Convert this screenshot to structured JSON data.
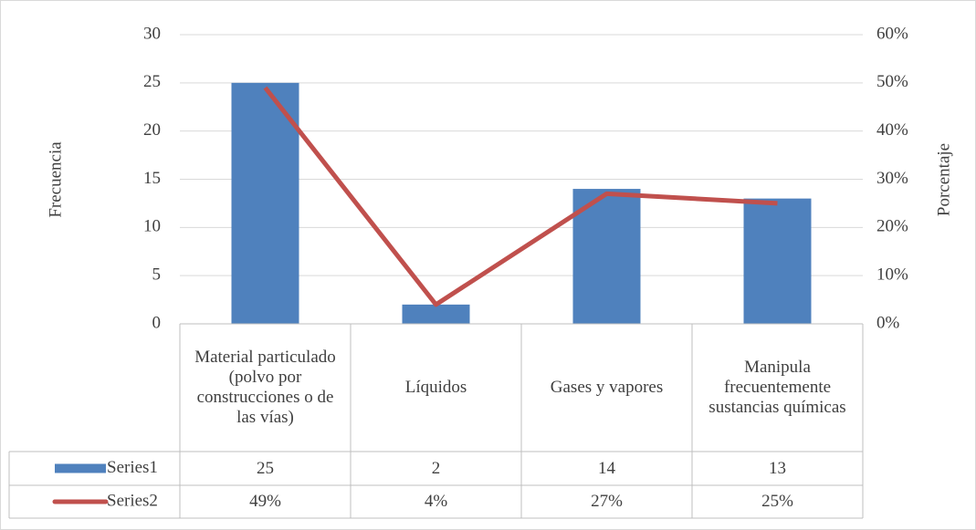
{
  "chart_data": {
    "type": "bar-line",
    "categories": [
      "Material particulado (polvo por construcciones o de las vías)",
      "Líquidos",
      "Gases y vapores",
      "Manipula frecuentemente sustancias químicas"
    ],
    "series": [
      {
        "name": "Series1",
        "type": "bar",
        "color": "#4f81bd",
        "values": [
          25,
          2,
          14,
          13
        ]
      },
      {
        "name": "Series2",
        "type": "line",
        "axis": "y2",
        "color": "#c0504d",
        "values": [
          49,
          4,
          27,
          25
        ],
        "value_labels": [
          "49%",
          "4%",
          "27%",
          "25%"
        ]
      }
    ],
    "y_label": "Frecuencia",
    "y2_label": "Porcentaje",
    "ylim": [
      0,
      30
    ],
    "yticks": [
      0,
      5,
      10,
      15,
      20,
      25,
      30
    ],
    "y2lim": [
      0,
      60
    ],
    "y2ticks": [
      {
        "value": 0,
        "label": "0%"
      },
      {
        "value": 10,
        "label": "10%"
      },
      {
        "value": 20,
        "label": "20%"
      },
      {
        "value": 30,
        "label": "30%"
      },
      {
        "value": 40,
        "label": "40%"
      },
      {
        "value": 50,
        "label": "50%"
      },
      {
        "value": 60,
        "label": "60%"
      }
    ],
    "grid": true,
    "data_table": true
  }
}
